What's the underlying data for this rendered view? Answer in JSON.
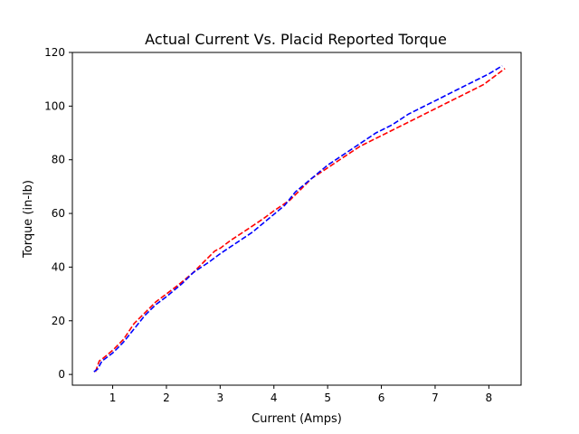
{
  "chart_data": {
    "type": "line",
    "title": "Actual Current Vs. Placid Reported Torque",
    "xlabel": "Current (Amps)",
    "ylabel": "Torque (in-lb)",
    "xlim": [
      0.25,
      8.6
    ],
    "ylim": [
      -4,
      120
    ],
    "xticks": [
      1,
      2,
      3,
      4,
      5,
      6,
      7,
      8
    ],
    "yticks": [
      0,
      20,
      40,
      60,
      80,
      100,
      120
    ],
    "grid": false,
    "series": [
      {
        "color": "#ff0000",
        "style": "dashed",
        "x": [
          0.68,
          0.75,
          0.82,
          1.0,
          1.2,
          1.4,
          1.6,
          1.8,
          2.0,
          2.2,
          2.5,
          2.7,
          2.9,
          3.0,
          3.2,
          3.5,
          3.8,
          4.0,
          4.3,
          4.5,
          4.7,
          5.0,
          5.3,
          5.6,
          5.9,
          6.2,
          6.5,
          6.9,
          7.2,
          7.6,
          7.9,
          8.1,
          8.3
        ],
        "y": [
          1,
          5,
          6,
          9,
          13,
          19,
          23,
          27,
          30,
          33,
          38,
          42,
          46,
          47,
          50,
          54,
          58,
          61,
          65,
          69,
          73,
          77,
          81,
          85,
          88,
          91,
          94,
          98,
          101,
          105,
          108,
          111,
          114
        ]
      },
      {
        "color": "#0000ff",
        "style": "dashed",
        "x": [
          0.65,
          0.72,
          0.8,
          1.0,
          1.2,
          1.4,
          1.6,
          1.8,
          2.0,
          2.3,
          2.5,
          2.8,
          3.0,
          3.3,
          3.6,
          3.9,
          4.2,
          4.4,
          4.7,
          5.0,
          5.3,
          5.6,
          5.9,
          6.2,
          6.5,
          6.8,
          7.1,
          7.4,
          7.7,
          8.0,
          8.25
        ],
        "y": [
          1,
          2,
          5,
          8,
          12,
          17,
          22,
          26,
          29,
          34,
          38,
          42,
          45,
          49,
          53,
          58,
          63,
          68,
          73,
          78,
          82,
          86,
          90,
          93,
          97,
          100,
          103,
          106,
          109,
          112,
          115
        ]
      }
    ]
  }
}
